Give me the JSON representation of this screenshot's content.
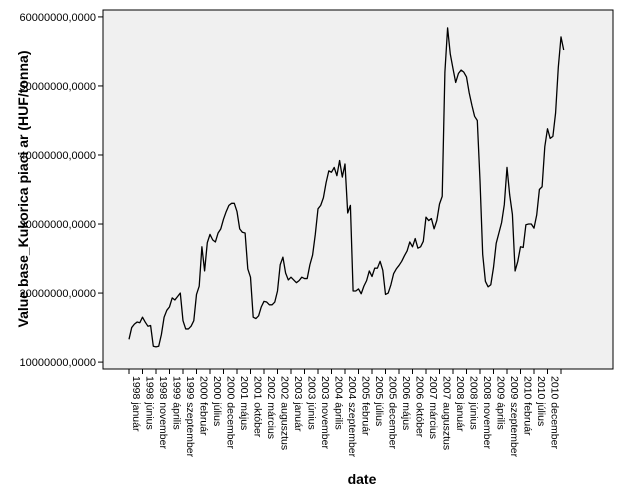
{
  "chart_data": {
    "type": "line",
    "title": "",
    "xlabel": "date",
    "ylabel": "Value base_Kukorica piaci ar (HUF/tonna)",
    "ylim": [
      9000000,
      61000000
    ],
    "grid": false,
    "legend": "none",
    "colors": {
      "plot_background": "#f0f0f0",
      "line": "#000000",
      "axes": "#000000"
    },
    "yticks": [
      10000000,
      20000000,
      30000000,
      40000000,
      50000000,
      60000000
    ],
    "ytick_labels": [
      "10000000,0000",
      "20000000,0000",
      "30000000,0000",
      "40000000,0000",
      "50000000,0000",
      "60000000,0000"
    ],
    "x_start": "1998 január",
    "x_step": "monthly",
    "xtick_labels": [
      "1998 január",
      "1998 június",
      "1998 november",
      "1999 április",
      "1999 szeptember",
      "2000 február",
      "2000 július",
      "2000 december",
      "2001 május",
      "2001 október",
      "2002 március",
      "2002 augusztus",
      "2003 január",
      "2003 június",
      "2003 november",
      "2004 április",
      "2004 szeptember",
      "2005 február",
      "2005 július",
      "2005 december",
      "2006 május",
      "2006 október",
      "2007 március",
      "2007 augusztus",
      "2008 január",
      "2008 június",
      "2008 november",
      "2009 április",
      "2009 szeptember",
      "2010 február",
      "2010 július",
      "2010 december"
    ],
    "series": [
      {
        "values": [
          13300000,
          15000000,
          15500000,
          15800000,
          15700000,
          16500000,
          15800000,
          15200000,
          15300000,
          12300000,
          12200000,
          12300000,
          14000000,
          16500000,
          17500000,
          18000000,
          19300000,
          19000000,
          19500000,
          20000000,
          16000000,
          14800000,
          14800000,
          15200000,
          16000000,
          19800000,
          21000000,
          26700000,
          23200000,
          27300000,
          28500000,
          27700000,
          27400000,
          28700000,
          29300000,
          30700000,
          31800000,
          32700000,
          33000000,
          33000000,
          31800000,
          29300000,
          28800000,
          28700000,
          23500000,
          22300000,
          16500000,
          16300000,
          16700000,
          18000000,
          18800000,
          18700000,
          18300000,
          18300000,
          18700000,
          20300000,
          24100000,
          25200000,
          22900000,
          21900000,
          22300000,
          21900000,
          21500000,
          21800000,
          22300000,
          22100000,
          22100000,
          24100000,
          25500000,
          28500000,
          32200000,
          32700000,
          33800000,
          36000000,
          37700000,
          37500000,
          38200000,
          37000000,
          39200000,
          36800000,
          38700000,
          31600000,
          32700000,
          20300000,
          20300000,
          20600000,
          19900000,
          21000000,
          21800000,
          23200000,
          22400000,
          23600000,
          23600000,
          24600000,
          23300000,
          19800000,
          20000000,
          21200000,
          22800000,
          23500000,
          24000000,
          24600000,
          25400000,
          26100000,
          27400000,
          26700000,
          27900000,
          26500000,
          26700000,
          27500000,
          31000000,
          30500000,
          30800000,
          29300000,
          30500000,
          32900000,
          34000000,
          52000000,
          58400000,
          54600000,
          52500000,
          50500000,
          51800000,
          52300000,
          52000000,
          51300000,
          49000000,
          47200000,
          45600000,
          45000000,
          36300000,
          25600000,
          21700000,
          20900000,
          21200000,
          23700000,
          27200000,
          28700000,
          30200000,
          32800000,
          38200000,
          34200000,
          31400000,
          23200000,
          24600000,
          26700000,
          26600000,
          29900000,
          30000000,
          30000000,
          29400000,
          31300000,
          35000000,
          35400000,
          41200000,
          43800000,
          42400000,
          42700000,
          46100000,
          52700000,
          57100000,
          55200000
        ]
      }
    ]
  }
}
